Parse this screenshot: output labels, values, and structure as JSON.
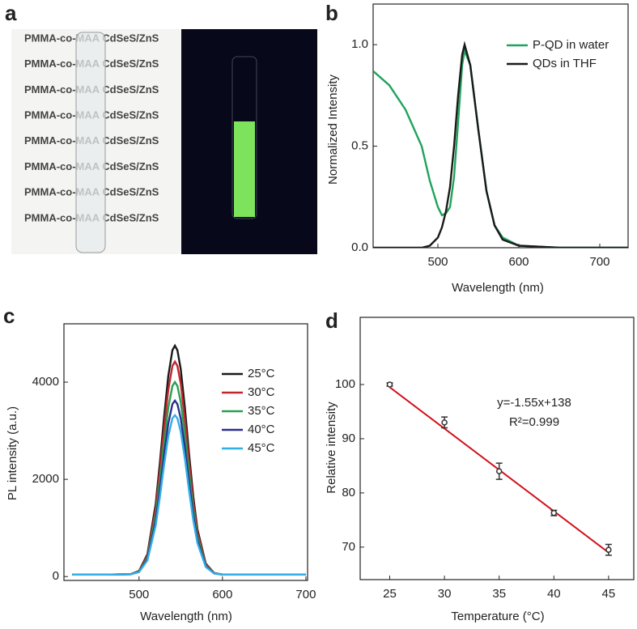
{
  "photo": {
    "panel_label": "a",
    "texts": [
      "PMMA-co-MAA CdSeS/ZnS",
      "PMMA-co-MAA CdSeS/ZnS",
      "PMMA-co-MAA CdSeS/ZnS",
      "PMMA-co-MAA CdSeS/ZnS",
      "PMMA-co-MAA CdSeS/ZnS",
      "PMMA-co-MAA CdSeS/ZnS",
      "PMMA-co-MAA CdSeS/ZnS",
      "PMMA-co-MAA CdSeS/ZnS"
    ]
  },
  "chart_data": [
    {
      "type": "line",
      "panel_label": "b",
      "x_label": "Wavelength (nm)",
      "y_label": "Normalized Intensity",
      "x": [
        420,
        440,
        460,
        480,
        490,
        500,
        505,
        510,
        515,
        520,
        525,
        530,
        533,
        540,
        550,
        560,
        570,
        580,
        600,
        650,
        700,
        735
      ],
      "series": [
        {
          "name": "P-QD in water",
          "color": "#1fa35c",
          "values": [
            0.87,
            0.8,
            0.68,
            0.5,
            0.33,
            0.2,
            0.16,
            0.17,
            0.2,
            0.35,
            0.62,
            0.9,
            0.97,
            0.9,
            0.58,
            0.28,
            0.11,
            0.05,
            0.01,
            0,
            0,
            0
          ]
        },
        {
          "name": "QDs in THF",
          "color": "#1a1a1a",
          "values": [
            0,
            0,
            0,
            0,
            0.01,
            0.05,
            0.1,
            0.18,
            0.3,
            0.5,
            0.75,
            0.95,
            1.0,
            0.9,
            0.58,
            0.28,
            0.11,
            0.04,
            0.01,
            0,
            0,
            0
          ]
        }
      ],
      "xlim": [
        420,
        735
      ],
      "ylim": [
        0,
        1.2
      ],
      "xticks": [
        500,
        600,
        700
      ],
      "yticks": [
        {
          "value": 0,
          "label": "0.0"
        },
        {
          "value": 0.5,
          "label": "0.5"
        },
        {
          "value": 1,
          "label": "1.0"
        }
      ],
      "legend": "upper right"
    },
    {
      "type": "line",
      "panel_label": "c",
      "x_label": "Wavelength (nm)",
      "y_label": "PL intensity (a.u.)",
      "x": [
        420,
        460,
        490,
        500,
        510,
        520,
        525,
        530,
        535,
        540,
        543,
        546,
        550,
        555,
        560,
        565,
        570,
        580,
        590,
        600,
        650,
        700
      ],
      "series": [
        {
          "name": "25°C",
          "color": "#1a1a1a",
          "values": [
            40,
            40,
            49,
            115,
            459,
            1495,
            2334,
            3276,
            4124,
            4656,
            4750,
            4656,
            4265,
            3459,
            2517,
            1646,
            973,
            266,
            73,
            40,
            40,
            40
          ]
        },
        {
          "name": "30°C",
          "color": "#c4262e",
          "values": [
            40,
            40,
            49,
            110,
            430,
            1393,
            2173,
            3049,
            3837,
            4332,
            4420,
            4332,
            3969,
            3220,
            2344,
            1534,
            907,
            250,
            71,
            40,
            40,
            40
          ]
        },
        {
          "name": "35°C",
          "color": "#27a04f",
          "values": [
            40,
            40,
            48,
            103,
            392,
            1264,
            1969,
            2761,
            3473,
            3921,
            4000,
            3921,
            3592,
            2915,
            2123,
            1390,
            824,
            230,
            68,
            40,
            40,
            40
          ]
        },
        {
          "name": "40°C",
          "color": "#2b2e8f",
          "values": [
            40,
            40,
            47,
            97,
            359,
            1146,
            1783,
            2499,
            3144,
            3548,
            3620,
            3548,
            3251,
            2639,
            1923,
            1261,
            749,
            212,
            65,
            40,
            40,
            40
          ]
        },
        {
          "name": "45°C",
          "color": "#33aee8",
          "values": [
            40,
            40,
            47,
            92,
            332,
            1054,
            1637,
            2293,
            2884,
            3254,
            3320,
            3254,
            2982,
            2421,
            1765,
            1158,
            689,
            197,
            63,
            40,
            40,
            40
          ]
        }
      ],
      "xlim": [
        410,
        702
      ],
      "ylim": [
        -80,
        5200
      ],
      "xticks": [
        500,
        600,
        700
      ],
      "yticks": [
        0,
        2000,
        4000
      ],
      "legend": "upper right"
    },
    {
      "type": "scatter",
      "panel_label": "d",
      "x_label": "Temperature (°C)",
      "y_label": "Relative intensity",
      "x": [
        25,
        30,
        35,
        40,
        45
      ],
      "series": [
        {
          "color": "#333333",
          "values": [
            100,
            93,
            84,
            76.3,
            69.5
          ],
          "errors": [
            0.3,
            1,
            1.5,
            0.5,
            1
          ]
        }
      ],
      "fit": {
        "x": [
          25,
          45
        ],
        "values": [
          99.5,
          69
        ],
        "color": "#d0121b"
      },
      "annotations": [
        "y=-1.55x+138",
        "R²=0.999"
      ],
      "xlim": [
        22.3,
        47.3
      ],
      "ylim": [
        64,
        112.4
      ],
      "xticks": [
        25,
        30,
        35,
        40,
        45
      ],
      "yticks": [
        70,
        80,
        90,
        100
      ]
    }
  ]
}
